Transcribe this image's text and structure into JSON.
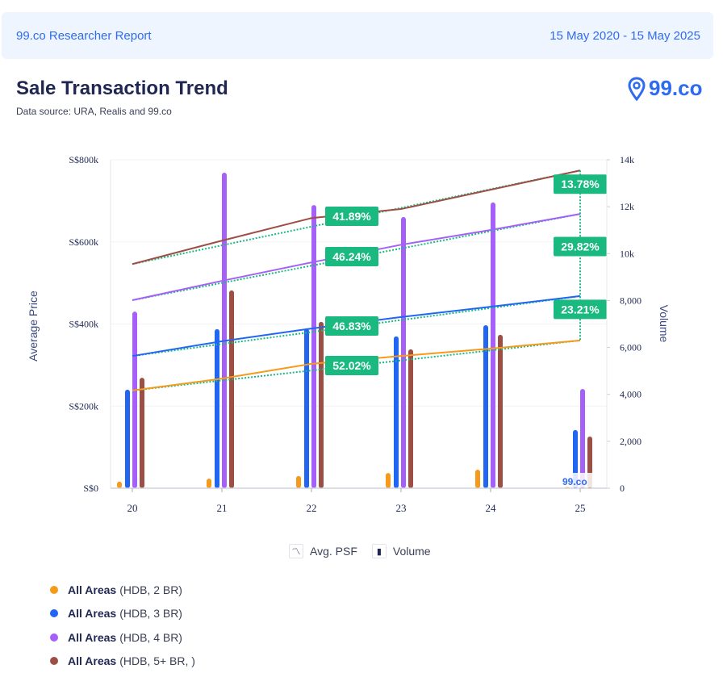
{
  "header": {
    "report": "99.co Researcher Report",
    "date_range": "15 May 2020 - 15 May 2025"
  },
  "title": "Sale Transaction Trend",
  "source": "Data source: URA, Realis and 99.co",
  "logo": "99.co",
  "watermark": "99.co",
  "chart_data": {
    "type": "bar+line",
    "categories": [
      "20",
      "21",
      "22",
      "23",
      "24",
      "25"
    ],
    "ylabel_left": "Average Price",
    "ylabel_right": "Volume",
    "ylim_left": [
      0,
      800000
    ],
    "ylim_right": [
      0,
      14000
    ],
    "left_ticks": [
      "S$0",
      "S$200k",
      "S$400k",
      "S$600k",
      "S$800k"
    ],
    "right_ticks": [
      "0",
      "2,000",
      "4,000",
      "6,000",
      "8,000",
      "10k",
      "12k",
      "14k"
    ],
    "legend_types": [
      {
        "icon": "line-chart-icon",
        "label": "Avg. PSF"
      },
      {
        "icon": "bar-chart-icon",
        "label": "Volume"
      }
    ],
    "series": [
      {
        "name": "All Areas",
        "detail": "(HDB, 2 BR)",
        "color": "#f59a1b",
        "price": [
          238000,
          267000,
          303000,
          322000,
          340000,
          360000
        ],
        "volume": [
          280,
          410,
          520,
          650,
          790,
          100
        ]
      },
      {
        "name": "All Areas",
        "detail": "(HDB, 3 BR)",
        "color": "#2166f3",
        "price": [
          322000,
          358000,
          389000,
          417000,
          442000,
          468000
        ],
        "volume": [
          4200,
          6780,
          6800,
          6470,
          6950,
          2480
        ]
      },
      {
        "name": "All Areas",
        "detail": "(HDB, 4 BR)",
        "color": "#a561f7",
        "price": [
          458000,
          505000,
          550000,
          593000,
          629000,
          668000
        ],
        "volume": [
          7530,
          13450,
          12070,
          11560,
          12180,
          4230
        ]
      },
      {
        "name": "All Areas",
        "detail": "(HDB, 5+ BR, )",
        "color": "#9c4f45",
        "price": [
          546000,
          603000,
          658000,
          680000,
          727000,
          774000
        ],
        "volume": [
          4710,
          8430,
          7090,
          5920,
          6540,
          2200
        ]
      }
    ],
    "annotations_mid": [
      {
        "label": "41.89%",
        "series": 3
      },
      {
        "label": "46.24%",
        "series": 2
      },
      {
        "label": "46.83%",
        "series": 1
      },
      {
        "label": "52.02%",
        "series": 0
      }
    ],
    "annotations_end": [
      {
        "label": "13.78%",
        "value": 717000
      },
      {
        "label": "29.82%",
        "value": 565000
      },
      {
        "label": "23.21%",
        "value": 412000
      }
    ],
    "annotation_color": "#1ab980"
  }
}
